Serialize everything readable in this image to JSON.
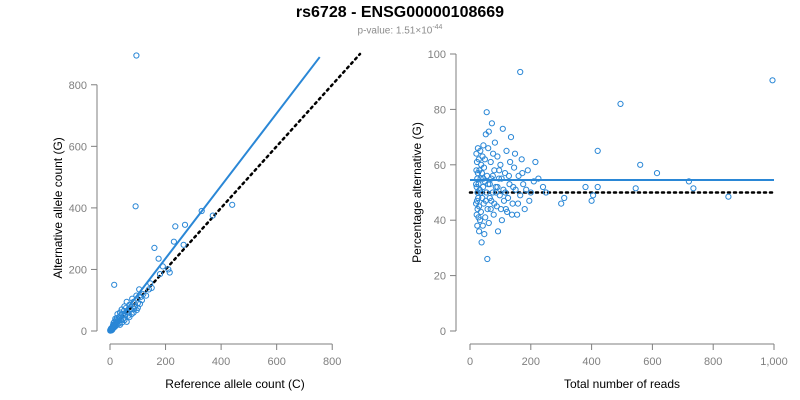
{
  "title": "rs6728 - ENSG00000108669",
  "subtitle": {
    "prefix": "p-value: ",
    "mantissa": "1.51",
    "times": "×",
    "base": "10",
    "exponent": "-44"
  },
  "colors": {
    "point": "#2a87d6",
    "fit": "#2a87d6",
    "reference": "#000000",
    "axis": "#7f7f7f"
  },
  "chart_data": [
    {
      "id": "left",
      "type": "scatter",
      "xlabel": "Reference allele count (C)",
      "ylabel": "Alternative allele count (G)",
      "xlim": [
        0,
        900
      ],
      "ylim": [
        0,
        900
      ],
      "xticks": [
        0,
        200,
        400,
        600,
        800
      ],
      "xtick_labels": [
        "0",
        "200",
        "400",
        "600",
        "800"
      ],
      "yticks": [
        0,
        200,
        400,
        600,
        800
      ],
      "ytick_labels": [
        "0",
        "200",
        "400",
        "600",
        "800"
      ],
      "fit_line": {
        "x": [
          0,
          755
        ],
        "y": [
          0,
          890
        ]
      },
      "reference_line": {
        "x": [
          0,
          900
        ],
        "y": [
          0,
          900
        ]
      },
      "points": [
        [
          95,
          895
        ],
        [
          92,
          405
        ],
        [
          330,
          390
        ],
        [
          440,
          410
        ],
        [
          370,
          375
        ],
        [
          270,
          345
        ],
        [
          235,
          340
        ],
        [
          160,
          270
        ],
        [
          15,
          150
        ],
        [
          175,
          235
        ],
        [
          190,
          210
        ],
        [
          210,
          200
        ],
        [
          215,
          190
        ],
        [
          265,
          280
        ],
        [
          230,
          290
        ],
        [
          180,
          185
        ],
        [
          145,
          155
        ],
        [
          150,
          140
        ],
        [
          120,
          120
        ],
        [
          110,
          110
        ],
        [
          105,
          135
        ],
        [
          100,
          90
        ],
        [
          95,
          115
        ],
        [
          90,
          80
        ],
        [
          85,
          95
        ],
        [
          80,
          105
        ],
        [
          75,
          70
        ],
        [
          70,
          85
        ],
        [
          65,
          60
        ],
        [
          60,
          95
        ],
        [
          55,
          50
        ],
        [
          52,
          80
        ],
        [
          50,
          65
        ],
        [
          48,
          40
        ],
        [
          45,
          55
        ],
        [
          42,
          70
        ],
        [
          40,
          35
        ],
        [
          38,
          50
        ],
        [
          36,
          60
        ],
        [
          34,
          25
        ],
        [
          32,
          45
        ],
        [
          30,
          38
        ],
        [
          28,
          30
        ],
        [
          27,
          55
        ],
        [
          26,
          20
        ],
        [
          25,
          42
        ],
        [
          24,
          28
        ],
        [
          22,
          35
        ],
        [
          21,
          18
        ],
        [
          20,
          25
        ],
        [
          19,
          40
        ],
        [
          18,
          14
        ],
        [
          17,
          22
        ],
        [
          16,
          30
        ],
        [
          15,
          12
        ],
        [
          14,
          18
        ],
        [
          13,
          26
        ],
        [
          12,
          10
        ],
        [
          12,
          16
        ],
        [
          11,
          20
        ],
        [
          10,
          8
        ],
        [
          10,
          14
        ],
        [
          9,
          11
        ],
        [
          9,
          6
        ],
        [
          8,
          12
        ],
        [
          8,
          4
        ],
        [
          7,
          9
        ],
        [
          7,
          5
        ],
        [
          6,
          7
        ],
        [
          6,
          3
        ],
        [
          5,
          6
        ],
        [
          5,
          2
        ],
        [
          4,
          4
        ],
        [
          4,
          8
        ],
        [
          3,
          3
        ],
        [
          3,
          5
        ],
        [
          2,
          2
        ],
        [
          2,
          4
        ],
        [
          1,
          1
        ],
        [
          1,
          3
        ],
        [
          60,
          30
        ],
        [
          70,
          45
        ],
        [
          85,
          60
        ],
        [
          100,
          75
        ],
        [
          115,
          100
        ],
        [
          130,
          115
        ],
        [
          140,
          135
        ],
        [
          58,
          75
        ],
        [
          66,
          50
        ],
        [
          44,
          28
        ],
        [
          36,
          20
        ],
        [
          52,
          35
        ],
        [
          78,
          55
        ],
        [
          88,
          72
        ],
        [
          96,
          68
        ],
        [
          108,
          88
        ]
      ]
    },
    {
      "id": "right",
      "type": "scatter",
      "xlabel": "Total number of reads",
      "ylabel": "Percentage alternative (G)",
      "xlim": [
        0,
        1000
      ],
      "ylim": [
        0,
        100
      ],
      "xticks": [
        0,
        200,
        400,
        600,
        800,
        1000
      ],
      "xtick_labels": [
        "0",
        "200",
        "400",
        "600",
        "800",
        "1,000"
      ],
      "yticks": [
        0,
        20,
        40,
        60,
        80,
        100
      ],
      "ytick_labels": [
        "0",
        "20",
        "40",
        "60",
        "80",
        "100"
      ],
      "fit_line": {
        "x": [
          0,
          1000
        ],
        "y": [
          54.5,
          54.5
        ]
      },
      "reference_line": {
        "x": [
          0,
          1000
        ],
        "y": [
          50,
          50
        ]
      },
      "points": [
        [
          995,
          90.5
        ],
        [
          165,
          93.5
        ],
        [
          495,
          82
        ],
        [
          420,
          65
        ],
        [
          560,
          60
        ],
        [
          615,
          57
        ],
        [
          720,
          54
        ],
        [
          735,
          51.5
        ],
        [
          850,
          48.5
        ],
        [
          420,
          52
        ],
        [
          405,
          49
        ],
        [
          400,
          47
        ],
        [
          545,
          51.5
        ],
        [
          380,
          52
        ],
        [
          310,
          48
        ],
        [
          300,
          46
        ],
        [
          250,
          50
        ],
        [
          240,
          52
        ],
        [
          225,
          55
        ],
        [
          215,
          61
        ],
        [
          210,
          54
        ],
        [
          200,
          50
        ],
        [
          195,
          47
        ],
        [
          190,
          58
        ],
        [
          180,
          44
        ],
        [
          175,
          53
        ],
        [
          170,
          62
        ],
        [
          165,
          49
        ],
        [
          160,
          56
        ],
        [
          155,
          42
        ],
        [
          150,
          51
        ],
        [
          145,
          59
        ],
        [
          140,
          46
        ],
        [
          135,
          70
        ],
        [
          130,
          53
        ],
        [
          125,
          48
        ],
        [
          120,
          65
        ],
        [
          118,
          44
        ],
        [
          115,
          57
        ],
        [
          110,
          51
        ],
        [
          108,
          73
        ],
        [
          105,
          40
        ],
        [
          100,
          60
        ],
        [
          98,
          49
        ],
        [
          95,
          55
        ],
        [
          92,
          36
        ],
        [
          90,
          63
        ],
        [
          88,
          45
        ],
        [
          85,
          52
        ],
        [
          82,
          68
        ],
        [
          80,
          58
        ],
        [
          78,
          42
        ],
        [
          75,
          50
        ],
        [
          72,
          75
        ],
        [
          70,
          47
        ],
        [
          68,
          61
        ],
        [
          65,
          53
        ],
        [
          62,
          39
        ],
        [
          60,
          66
        ],
        [
          58,
          44
        ],
        [
          56,
          56
        ],
        [
          55,
          79
        ],
        [
          54,
          50
        ],
        [
          52,
          71
        ],
        [
          50,
          41
        ],
        [
          49,
          62
        ],
        [
          48,
          54
        ],
        [
          47,
          35
        ],
        [
          46,
          59
        ],
        [
          45,
          46
        ],
        [
          44,
          67
        ],
        [
          43,
          52
        ],
        [
          42,
          38
        ],
        [
          41,
          63
        ],
        [
          40,
          48
        ],
        [
          39,
          57
        ],
        [
          38,
          32
        ],
        [
          37,
          60
        ],
        [
          36,
          43
        ],
        [
          35,
          55
        ],
        [
          34,
          65
        ],
        [
          33,
          40
        ],
        [
          32,
          51
        ],
        [
          31,
          58
        ],
        [
          30,
          36
        ],
        [
          30,
          45
        ],
        [
          29,
          62
        ],
        [
          28,
          53
        ],
        [
          28,
          41
        ],
        [
          27,
          48
        ],
        [
          26,
          57
        ],
        [
          26,
          66
        ],
        [
          25,
          44
        ],
        [
          25,
          50
        ],
        [
          24,
          38
        ],
        [
          24,
          55
        ],
        [
          23,
          61
        ],
        [
          23,
          47
        ],
        [
          22,
          52
        ],
        [
          22,
          42
        ],
        [
          21,
          58
        ],
        [
          21,
          64
        ],
        [
          20,
          46
        ],
        [
          20,
          53
        ],
        [
          57,
          26
        ],
        [
          65,
          48
        ],
        [
          75,
          56
        ],
        [
          86,
          50
        ],
        [
          96,
          58
        ],
        [
          112,
          47
        ],
        [
          128,
          56
        ],
        [
          142,
          52
        ],
        [
          158,
          46
        ],
        [
          172,
          57
        ],
        [
          138,
          42
        ],
        [
          122,
          43
        ],
        [
          102,
          44
        ],
        [
          132,
          61
        ],
        [
          148,
          64
        ],
        [
          185,
          51
        ],
        [
          62,
          72
        ],
        [
          70,
          55
        ],
        [
          80,
          46
        ],
        [
          90,
          52
        ],
        [
          104,
          55
        ],
        [
          116,
          50
        ],
        [
          36,
          50
        ],
        [
          44,
          55
        ],
        [
          52,
          47
        ],
        [
          60,
          53
        ],
        [
          68,
          44
        ],
        [
          76,
          64
        ]
      ]
    }
  ]
}
